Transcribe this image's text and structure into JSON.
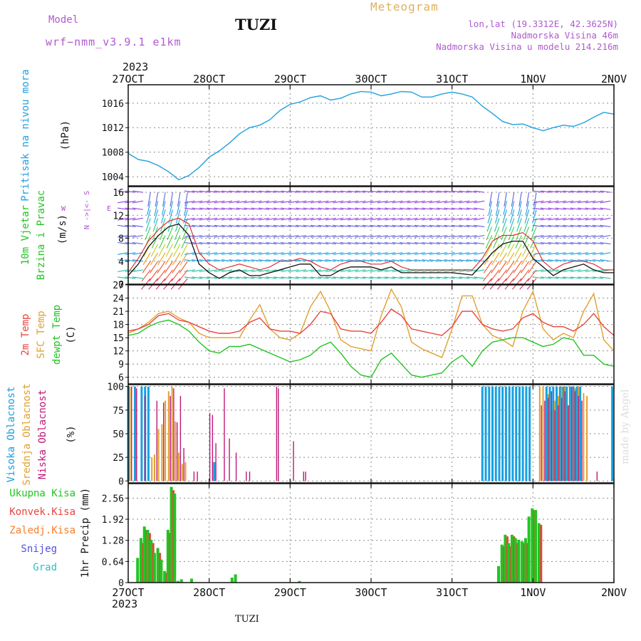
{
  "header": {
    "model_label": "Model",
    "model_name": "wrf−nmm_v3.9.1 e1km",
    "station": "TUZI",
    "title": "Meteogram",
    "lonlat": "lon,lat (19.3312E, 42.3625N)",
    "elevation": "Nadmorska Visina 46m",
    "model_elevation": "Nadmorska Visina u modelu 214.216m",
    "year_top": "2023",
    "year_bottom": "2023",
    "footer": "TUZI",
    "made_by": "made by Angel"
  },
  "colors": {
    "pressure": "#22a0e0",
    "temp2m": "#e8443c",
    "sfc": "#e0a030",
    "dewpt": "#22c422",
    "high_cloud": "#18a0e0",
    "mid_cloud": "#e0a030",
    "low_cloud": "#c01878",
    "total_precip": "#22c422",
    "conv_precip": "#e8443c",
    "frozen": "#f08030",
    "snow": "#5050e0",
    "graupel": "#30c0c0",
    "wind_legend": "#22c422",
    "dir_legend": "#b050d0"
  },
  "time_axis": {
    "labels": [
      "27OCT",
      "28OCT",
      "29OCT",
      "30OCT",
      "31OCT",
      "1NOV",
      "2NOV"
    ],
    "range_hours": [
      0,
      144
    ]
  },
  "chart_data": [
    {
      "type": "line",
      "name": "pressure",
      "ylabel": "Pritisak na nivou mora",
      "unit": "(hPa)",
      "yticks": [
        1004,
        1008,
        1012,
        1016
      ],
      "ylim": [
        1002.5,
        1019
      ],
      "grid": true,
      "x_hours": [
        0,
        3,
        6,
        9,
        12,
        15,
        18,
        21,
        24,
        27,
        30,
        33,
        36,
        39,
        42,
        45,
        48,
        51,
        54,
        57,
        60,
        63,
        66,
        69,
        72,
        75,
        78,
        81,
        84,
        87,
        90,
        93,
        96,
        99,
        102,
        105,
        108,
        111,
        114,
        117,
        120,
        123,
        126,
        129,
        132,
        135,
        138,
        141,
        144
      ],
      "series": [
        {
          "values": [
            1007.8,
            1006.8,
            1006.5,
            1005.8,
            1004.8,
            1003.5,
            1004.2,
            1005.5,
            1007.2,
            1008.2,
            1009.5,
            1011.0,
            1012.0,
            1012.4,
            1013.3,
            1014.8,
            1015.8,
            1016.2,
            1016.9,
            1017.2,
            1016.5,
            1016.8,
            1017.5,
            1017.9,
            1017.8,
            1017.2,
            1017.5,
            1017.9,
            1017.8,
            1017.0,
            1017.0,
            1017.5,
            1017.8,
            1017.5,
            1017.0,
            1015.5,
            1014.3,
            1013.0,
            1012.5,
            1012.6,
            1012.0,
            1011.5,
            1012.0,
            1012.4,
            1012.2,
            1012.8,
            1013.7,
            1014.5,
            1014.2
          ]
        }
      ]
    },
    {
      "type": "line",
      "name": "wind",
      "ylabel": "10m Vjetar",
      "ylabel2": "Brzina i Pravac",
      "unit": "(m/s)",
      "yticks": [
        0,
        4,
        8,
        12,
        16
      ],
      "ylim": [
        0,
        17
      ],
      "grid": true,
      "direction_legend": "N ->|<- S",
      "direction_legend_w": "W",
      "direction_legend_e": "E",
      "x_hours": [
        0,
        3,
        6,
        9,
        12,
        15,
        18,
        21,
        24,
        27,
        30,
        33,
        36,
        39,
        42,
        45,
        48,
        51,
        54,
        57,
        60,
        63,
        66,
        69,
        72,
        75,
        78,
        81,
        84,
        87,
        90,
        93,
        96,
        99,
        102,
        105,
        108,
        111,
        114,
        117,
        120,
        123,
        126,
        129,
        132,
        135,
        138,
        141,
        144
      ],
      "series": [
        {
          "name": "10m wind speed",
          "values": [
            1.5,
            3.5,
            6.5,
            8.5,
            10.0,
            10.5,
            8.5,
            3.5,
            2.0,
            1.0,
            2.0,
            2.5,
            1.5,
            1.5,
            2.0,
            2.5,
            3.0,
            3.5,
            3.5,
            1.5,
            1.5,
            2.5,
            3.0,
            3.0,
            3.0,
            2.5,
            3.0,
            2.0,
            2.0,
            2.0,
            2.0,
            2.0,
            2.0,
            1.8,
            1.6,
            3.5,
            5.5,
            7.0,
            7.5,
            7.5,
            4.5,
            3.0,
            1.5,
            2.5,
            3.0,
            3.5,
            2.5,
            2.0,
            2.0
          ]
        },
        {
          "name": "10m wind gust",
          "values": [
            2.0,
            4.5,
            7.5,
            9.5,
            11.0,
            11.5,
            10.5,
            5.5,
            3.5,
            2.5,
            3.0,
            3.5,
            3.0,
            2.5,
            3.0,
            4.0,
            4.0,
            4.5,
            4.0,
            3.0,
            2.5,
            3.5,
            4.0,
            4.0,
            3.5,
            3.5,
            4.0,
            3.0,
            2.5,
            2.5,
            2.5,
            2.5,
            2.5,
            2.5,
            2.5,
            4.5,
            7.5,
            8.5,
            8.5,
            9.0,
            7.5,
            4.0,
            2.5,
            3.5,
            4.0,
            4.0,
            3.5,
            2.5,
            2.5
          ]
        }
      ]
    },
    {
      "type": "line",
      "name": "temperature",
      "ylabel": "2m Temp",
      "ylabel2": "SFC Temp",
      "ylabel3": "dewpt Temp",
      "unit": "(C)",
      "yticks": [
        6,
        9,
        12,
        15,
        18,
        21,
        24,
        27
      ],
      "ylim": [
        4.5,
        27
      ],
      "grid": true,
      "x_hours": [
        0,
        3,
        6,
        9,
        12,
        15,
        18,
        21,
        24,
        27,
        30,
        33,
        36,
        39,
        42,
        45,
        48,
        51,
        54,
        57,
        60,
        63,
        66,
        69,
        72,
        75,
        78,
        81,
        84,
        87,
        90,
        93,
        96,
        99,
        102,
        105,
        108,
        111,
        114,
        117,
        120,
        123,
        126,
        129,
        132,
        135,
        138,
        141,
        144
      ],
      "series": [
        {
          "name": "2m Temp",
          "values": [
            16.5,
            17.0,
            18.0,
            20.0,
            20.5,
            19.0,
            18.5,
            17.5,
            16.5,
            16.0,
            16.0,
            16.5,
            18.5,
            19.5,
            17.0,
            16.5,
            16.5,
            16.0,
            18.0,
            21.0,
            20.5,
            17.0,
            16.5,
            16.5,
            16.0,
            18.5,
            21.5,
            20.0,
            17.0,
            16.5,
            16.0,
            15.5,
            17.5,
            21.0,
            21.0,
            18.0,
            17.0,
            16.5,
            17.0,
            19.5,
            20.5,
            18.5,
            17.5,
            17.5,
            16.5,
            18.0,
            20.5,
            17.5,
            15.5
          ]
        },
        {
          "name": "SFC Temp",
          "values": [
            16.0,
            17.0,
            18.5,
            20.5,
            21.0,
            19.5,
            18.5,
            16.0,
            15.0,
            15.0,
            15.0,
            15.0,
            19.0,
            22.5,
            17.0,
            15.0,
            14.5,
            16.0,
            22.0,
            25.5,
            21.0,
            14.5,
            13.0,
            12.5,
            12.0,
            20.0,
            26.0,
            22.0,
            14.0,
            12.5,
            11.5,
            10.5,
            17.0,
            24.5,
            24.5,
            18.0,
            15.5,
            14.5,
            13.0,
            21.0,
            25.5,
            17.0,
            14.5,
            16.0,
            15.0,
            21.0,
            25.0,
            14.5,
            12.0
          ]
        },
        {
          "name": "dewpt Temp",
          "values": [
            15.5,
            16.0,
            17.5,
            18.5,
            19.0,
            18.0,
            16.5,
            14.0,
            12.0,
            11.5,
            13.0,
            13.0,
            13.5,
            12.5,
            11.5,
            10.5,
            9.5,
            10.0,
            11.0,
            13.0,
            14.0,
            11.5,
            8.5,
            6.5,
            6.0,
            10.0,
            11.5,
            9.0,
            6.5,
            6.0,
            6.5,
            7.0,
            9.5,
            11.0,
            8.5,
            12.0,
            14.0,
            14.5,
            15.0,
            15.0,
            14.0,
            13.0,
            13.5,
            15.0,
            14.5,
            11.0,
            11.0,
            9.0,
            8.5
          ]
        }
      ]
    },
    {
      "type": "bar",
      "name": "cloud_cover",
      "ylabel": "Visoka Oblacnost",
      "ylabel2": "Srednja Oblacnost",
      "ylabel3": "Niska Oblacnost",
      "unit": "(%)",
      "yticks": [
        0,
        25,
        50,
        75,
        100
      ],
      "ylim": [
        -2,
        102
      ],
      "grid": true,
      "high_hours": [
        0,
        2,
        4,
        5,
        6,
        25.5,
        105,
        106,
        107,
        108,
        109,
        110,
        111,
        112,
        113,
        114,
        115,
        116,
        117,
        118,
        119,
        124,
        125,
        126,
        127,
        128,
        129,
        130,
        131,
        132,
        133,
        134,
        143.5
      ],
      "high_values": [
        100,
        100,
        100,
        100,
        100,
        20,
        100,
        100,
        100,
        100,
        100,
        100,
        100,
        100,
        100,
        100,
        100,
        100,
        100,
        100,
        100,
        100,
        100,
        100,
        100,
        100,
        100,
        100,
        100,
        100,
        100,
        100,
        100
      ],
      "mid_hours": [
        0.5,
        7,
        7.8,
        9,
        10,
        11,
        12,
        13,
        14,
        15,
        16,
        17,
        18,
        19,
        20,
        122,
        123,
        124.5,
        125.5,
        126.5,
        127.5,
        128.5,
        129.5,
        130.5,
        131.5,
        132.5,
        133.5,
        135,
        136
      ],
      "mid_values": [
        100,
        25,
        28,
        55,
        60,
        85,
        95,
        100,
        63,
        30,
        18,
        20,
        0,
        0,
        0,
        100,
        100,
        92,
        75,
        85,
        90,
        100,
        100,
        80,
        95,
        98,
        100,
        93,
        90
      ],
      "low_hours": [
        1,
        2.5,
        5,
        8.5,
        10.5,
        12.5,
        13.5,
        14.5,
        15.5,
        16.5,
        19.5,
        20.5,
        24.2,
        25,
        26,
        28.5,
        30,
        32,
        35,
        36,
        44,
        44.5,
        49,
        52,
        52.6,
        63,
        88,
        108,
        113,
        116,
        118,
        119,
        120,
        122.5,
        123.5,
        124.5,
        125.5,
        126.5,
        127.5,
        128.5,
        129.5,
        130.5,
        131.5,
        132.5,
        133.5,
        134.5,
        139
      ],
      "low_values": [
        100,
        98,
        90,
        85,
        83,
        90,
        98,
        62,
        90,
        35,
        10,
        10,
        72,
        70,
        40,
        98,
        45,
        30,
        10,
        10,
        100,
        98,
        42,
        10,
        10,
        0,
        0,
        0,
        0,
        0,
        0,
        0,
        0,
        80,
        85,
        88,
        95,
        75,
        80,
        88,
        95,
        80,
        100,
        95,
        90,
        85,
        10
      ]
    },
    {
      "type": "bar",
      "name": "precipitation",
      "ylabel": "1hr Precip",
      "unit": "(mm)",
      "legend": [
        "Ukupna Kisa",
        "Konvek.Kisa",
        "Zaledj.Kisa",
        "Snijeg",
        "Grad"
      ],
      "yticks": [
        0,
        0.64,
        1.28,
        1.92,
        2.56
      ],
      "ylim": [
        0,
        3.0
      ],
      "grid": true,
      "hours": [
        3,
        4,
        5,
        6,
        7,
        8,
        9,
        10,
        11,
        12,
        13,
        14,
        15,
        16,
        19,
        31,
        32,
        51,
        110,
        111,
        112,
        113,
        114,
        115,
        116,
        117,
        118,
        119,
        120,
        121,
        122,
        123
      ],
      "total": [
        0.75,
        1.35,
        1.7,
        1.6,
        1.3,
        0.9,
        1.05,
        0.7,
        0.35,
        1.6,
        2.9,
        2.7,
        0.05,
        0.1,
        0.12,
        0.15,
        0.25,
        0.05,
        0.5,
        1.15,
        1.45,
        1.2,
        1.45,
        1.35,
        1.3,
        1.25,
        1.35,
        2.0,
        2.25,
        2.2,
        1.8,
        0.0
      ],
      "convective": [
        0.0,
        1.2,
        1.6,
        1.5,
        1.2,
        0.0,
        0.9,
        0.0,
        0.3,
        1.5,
        2.8,
        0.0,
        0.0,
        0.0,
        0.0,
        0.0,
        0.0,
        0.0,
        0.0,
        1.1,
        1.4,
        1.1,
        1.4,
        1.2,
        0.0,
        1.2,
        1.2,
        0.0,
        2.2,
        0.0,
        1.75,
        0.0
      ]
    }
  ]
}
